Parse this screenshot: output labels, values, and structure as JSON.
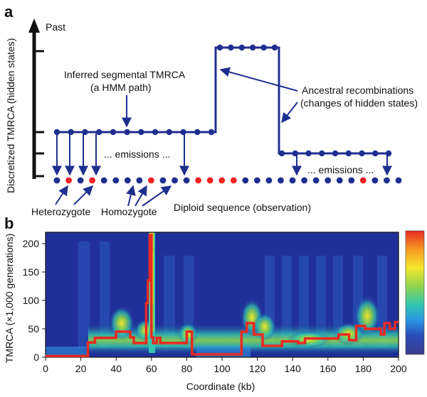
{
  "panel_a": {
    "label": "a",
    "y_axis_top": "Past",
    "y_axis_label": "Discretized TMRCA (hidden states)",
    "hmm_label_line1": "Inferred segmental TMRCA",
    "hmm_label_line2": "(a HMM path)",
    "recomb_label_line1": "Ancestral recombinations",
    "recomb_label_line2": "(changes of hidden states)",
    "emissions_left": "... emissions ...",
    "emissions_right": "... emissions ...",
    "heterozygote": "Heterozygote",
    "homozygote": "Homozygote",
    "diploid_label": "Diploid sequence (observation)",
    "path_color": "#1f2f8f",
    "het_color": "#ee2222",
    "hom_color": "#1f2f8f",
    "observation_sequence": [
      "hom",
      "het",
      "hom",
      "het",
      "hom",
      "hom",
      "hom",
      "hom",
      "het",
      "hom",
      "hom",
      "hom",
      "het",
      "het",
      "het",
      "het",
      "hom",
      "hom",
      "hom",
      "hom",
      "hom",
      "hom",
      "hom",
      "hom",
      "hom",
      "hom",
      "het",
      "hom",
      "hom",
      "hom"
    ]
  },
  "panel_b": {
    "label": "b",
    "chart_data": {
      "type": "heatmap",
      "xlabel": "Coordinate (kb)",
      "ylabel": "TMRCA (×1,000 generations)",
      "xlim": [
        0,
        200
      ],
      "ylim": [
        0,
        220
      ],
      "x_ticks": [
        "0",
        "20",
        "40",
        "60",
        "80",
        "100",
        "120",
        "140",
        "160",
        "180",
        "200"
      ],
      "y_ticks": [
        "0",
        "50",
        "100",
        "150",
        "200"
      ],
      "line_color": "#ee2222",
      "path": {
        "x": [
          0,
          24,
          24,
          28,
          28,
          40,
          40,
          48,
          48,
          50,
          50,
          57,
          57,
          58,
          58,
          59,
          59,
          60,
          60,
          61,
          61,
          63,
          63,
          65,
          65,
          80,
          80,
          83,
          83,
          86,
          86,
          111,
          111,
          114,
          114,
          118,
          118,
          123,
          123,
          126,
          126,
          134,
          134,
          143,
          143,
          147,
          147,
          166,
          166,
          172,
          172,
          176,
          176,
          181,
          181,
          190,
          190,
          192,
          192,
          195,
          195,
          198,
          198,
          200
        ],
        "y": [
          2,
          2,
          26,
          26,
          34,
          34,
          45,
          45,
          35,
          35,
          25,
          25,
          95,
          95,
          135,
          135,
          215,
          215,
          35,
          35,
          25,
          25,
          34,
          34,
          25,
          25,
          45,
          45,
          5,
          5,
          5,
          5,
          45,
          45,
          60,
          60,
          40,
          40,
          20,
          20,
          20,
          20,
          28,
          28,
          25,
          25,
          33,
          33,
          40,
          40,
          30,
          30,
          55,
          55,
          50,
          50,
          40,
          40,
          60,
          60,
          50,
          50,
          62,
          62
        ]
      },
      "colorbar": [
        "#e8282a",
        "#f4a020",
        "#f4e830",
        "#9bd84c",
        "#36c8a8",
        "#2d8ee0",
        "#2a3ea8",
        "#3a3a8f"
      ]
    }
  }
}
